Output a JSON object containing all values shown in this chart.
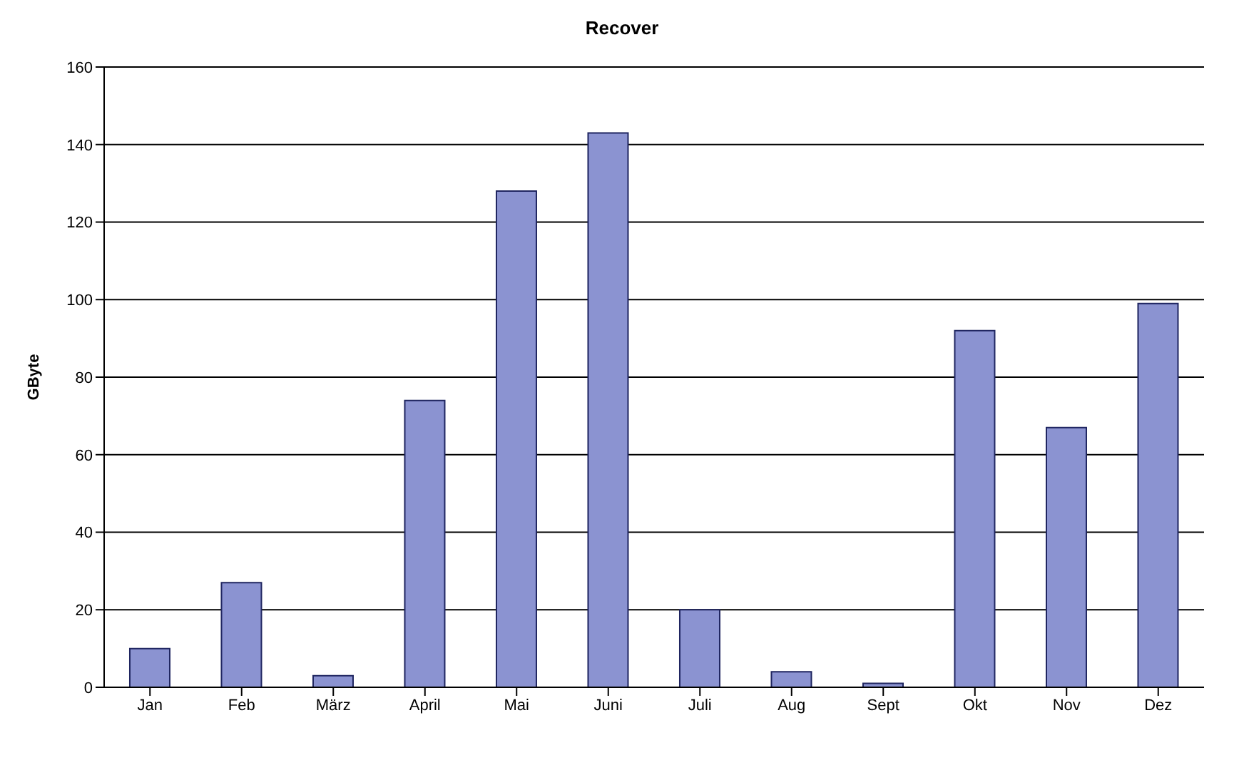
{
  "chart_data": {
    "type": "bar",
    "title": "Recover",
    "ylabel": "GByte",
    "categories": [
      "Jan",
      "Feb",
      "März",
      "April",
      "Mai",
      "Juni",
      "Juli",
      "Aug",
      "Sept",
      "Okt",
      "Nov",
      "Dez"
    ],
    "values": [
      10,
      27,
      3,
      74,
      128,
      143,
      20,
      4,
      1,
      92,
      67,
      99
    ],
    "color": "#8b93d1",
    "ylim": [
      0,
      160
    ],
    "yticks": [
      0,
      20,
      40,
      60,
      80,
      100,
      120,
      140,
      160
    ],
    "grid": "y"
  }
}
